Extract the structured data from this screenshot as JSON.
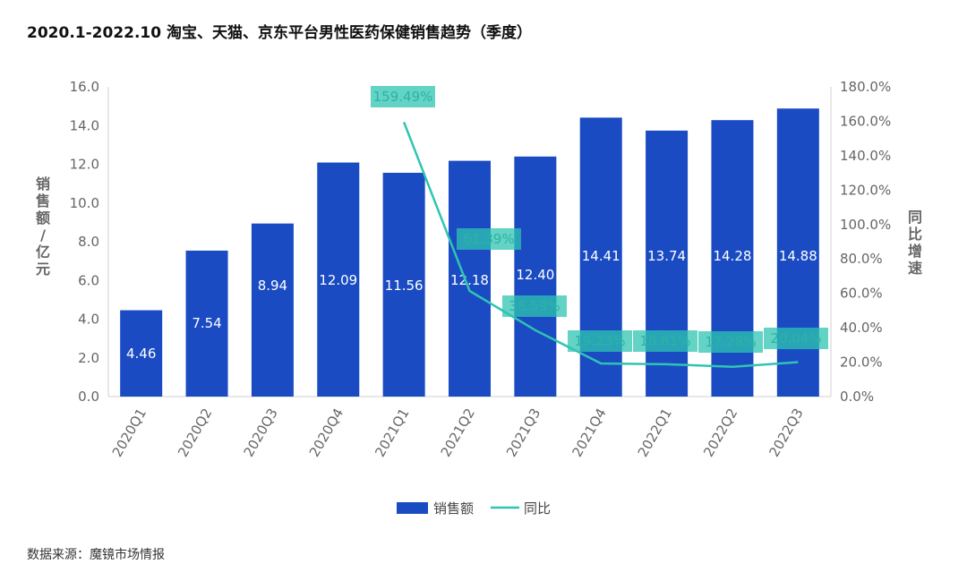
{
  "title": "2020.1-2022.10 淘宝、天猫、京东平台男性医药保健销售趋势（季度）",
  "source": "数据来源：魔镜市场情报",
  "colors": {
    "bar": "#1a4bc2",
    "line": "#2fc4b2",
    "label_bg": "#2fc4b2",
    "tick": "#666666"
  },
  "chart_data": {
    "type": "bar",
    "categories": [
      "2020Q1",
      "2020Q2",
      "2020Q3",
      "2020Q4",
      "2021Q1",
      "2021Q2",
      "2021Q3",
      "2021Q4",
      "2022Q1",
      "2022Q2",
      "2022Q3"
    ],
    "series": [
      {
        "name": "销售额",
        "type": "bar",
        "axis": "left",
        "values": [
          4.46,
          7.54,
          8.94,
          12.09,
          11.56,
          12.18,
          12.4,
          14.41,
          13.74,
          14.28,
          14.88
        ],
        "labels": [
          "4.46",
          "7.54",
          "8.94",
          "12.09",
          "11.56",
          "12.18",
          "12.40",
          "14.41",
          "13.74",
          "14.28",
          "14.88"
        ]
      },
      {
        "name": "同比",
        "type": "line",
        "axis": "right",
        "values": [
          null,
          null,
          null,
          null,
          159.49,
          61.39,
          38.59,
          19.23,
          18.81,
          17.28,
          20.04
        ],
        "labels": [
          "",
          "",
          "",
          "",
          "159.49%",
          "61.39%",
          "38.59%",
          "19.23%",
          "18.81%",
          "17.28%",
          "20.04%"
        ]
      }
    ],
    "ylabel": "销售额/亿元",
    "y2label": "同比增速",
    "ylim": [
      0,
      16
    ],
    "y2lim": [
      0,
      180
    ],
    "yticks": [
      "0.0",
      "2.0",
      "4.0",
      "6.0",
      "8.0",
      "10.0",
      "12.0",
      "14.0",
      "16.0"
    ],
    "y2ticks": [
      "0.0%",
      "20.0%",
      "40.0%",
      "60.0%",
      "80.0%",
      "100.0%",
      "120.0%",
      "140.0%",
      "160.0%",
      "180.0%"
    ],
    "grid": false,
    "legend": "bottom"
  }
}
